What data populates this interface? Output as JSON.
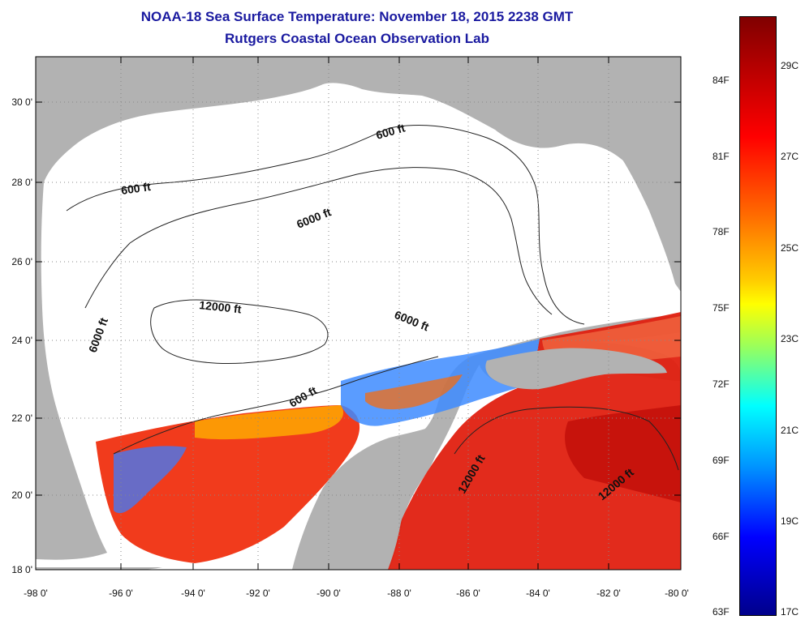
{
  "header": {
    "title": "NOAA-18 Sea Surface Temperature:  November 18, 2015 2238 GMT",
    "subtitle": "Rutgers Coastal Ocean Observation Lab"
  },
  "map": {
    "region": "Gulf of Mexico",
    "lat_labels": [
      "30 0'",
      "28 0'",
      "26 0'",
      "24 0'",
      "22 0'",
      "20 0'",
      "18 0'"
    ],
    "lon_labels": [
      "-98 0'",
      "-96 0'",
      "-94 0'",
      "-92 0'",
      "-90 0'",
      "-88 0'",
      "-86 0'",
      "-84 0'",
      "-82 0'",
      "-80 0'"
    ],
    "contour_labels": [
      "600 ft",
      "600 ft",
      "6000 ft",
      "6000 ft",
      "6000 ft",
      "12000 ft",
      "600 ft",
      "12000 ft",
      "12000 ft"
    ]
  },
  "colorbar": {
    "fahrenheit_labels": [
      "84F",
      "81F",
      "78F",
      "75F",
      "72F",
      "69F",
      "66F",
      "63F"
    ],
    "celsius_labels": [
      "29C",
      "27C",
      "25C",
      "23C",
      "21C",
      "19C",
      "17C"
    ],
    "colors": [
      "#800000",
      "#ff0000",
      "#ff6a00",
      "#ffff00",
      "#00ffff",
      "#0000ff",
      "#00008b"
    ]
  }
}
